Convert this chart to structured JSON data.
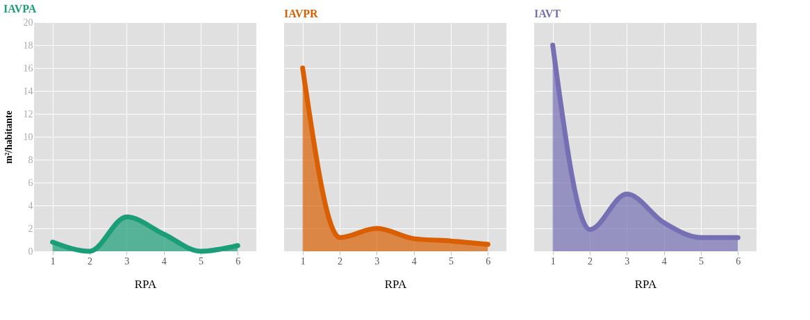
{
  "chart_data": [
    {
      "type": "area",
      "title": "IAVPA",
      "xlabel": "RPA",
      "ylabel": "m²/habitante",
      "x": [
        1,
        2,
        3,
        4,
        5,
        6
      ],
      "xlim": [
        0.5,
        6.5
      ],
      "xticks": [
        1,
        2,
        3,
        4,
        5,
        6
      ],
      "ylim": [
        0,
        20
      ],
      "yticks": [
        0,
        2,
        4,
        6,
        8,
        10,
        12,
        14,
        16,
        18,
        20
      ],
      "grid": true,
      "legend": false,
      "series": [
        {
          "color": "#1b9e77",
          "values": [
            0.8,
            0,
            3,
            1.5,
            0,
            0.5
          ]
        }
      ]
    },
    {
      "type": "area",
      "title": "IAVPR",
      "xlabel": "RPA",
      "x": [
        1,
        2,
        3,
        4,
        5,
        6
      ],
      "xlim": [
        0.5,
        6.5
      ],
      "xticks": [
        1,
        2,
        3,
        4,
        5,
        6
      ],
      "ylim": [
        0,
        20
      ],
      "yticks": [
        0,
        2,
        4,
        6,
        8,
        10,
        12,
        14,
        16,
        18,
        20
      ],
      "grid": true,
      "legend": false,
      "tick_labels": "x",
      "series": [
        {
          "color": "#d95f02",
          "values": [
            16,
            1.2,
            2,
            1.1,
            0.9,
            0.6
          ]
        }
      ]
    },
    {
      "type": "area",
      "title": "IAVT",
      "xlabel": "RPA",
      "x": [
        1,
        2,
        3,
        4,
        5,
        6
      ],
      "xlim": [
        0.5,
        6.5
      ],
      "xticks": [
        1,
        2,
        3,
        4,
        5,
        6
      ],
      "ylim": [
        0,
        20
      ],
      "yticks": [
        0,
        2,
        4,
        6,
        8,
        10,
        12,
        14,
        16,
        18,
        20
      ],
      "grid": true,
      "legend": false,
      "tick_labels": "x",
      "series": [
        {
          "color": "#7570b3",
          "values": [
            18,
            1.9,
            5,
            2.5,
            1.2,
            1.2
          ]
        }
      ]
    }
  ]
}
